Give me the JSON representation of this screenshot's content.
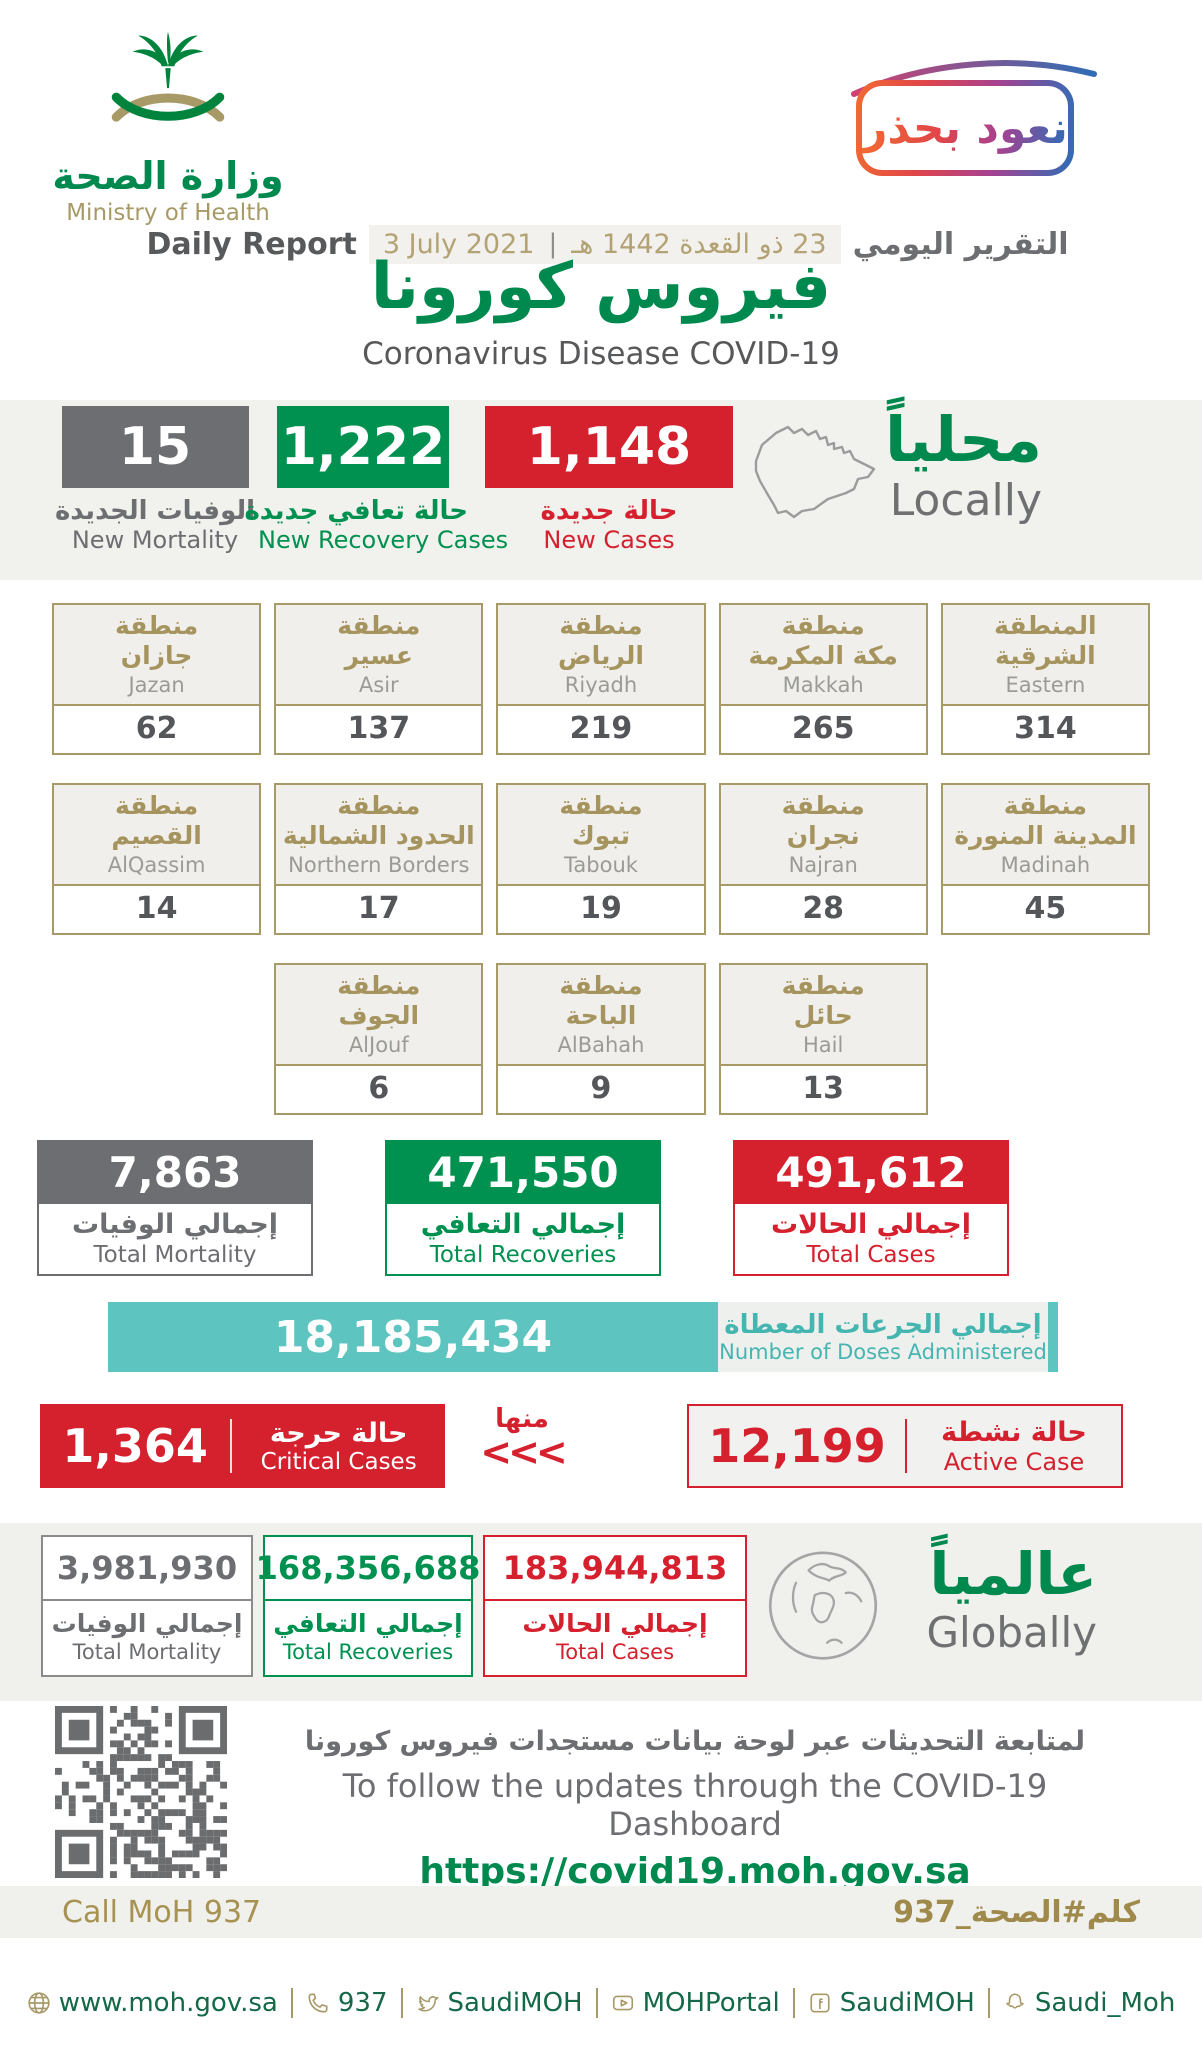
{
  "colors": {
    "green": "#009150",
    "red": "#d5202e",
    "gray": "#6d6e71",
    "gold": "#a79a66",
    "teal": "#5ec4c0"
  },
  "header": {
    "ministry_ar": "وزارة الصحة",
    "ministry_en": "Ministry of Health",
    "badge_ar": "نعود بحذر",
    "daily_report_en": "Daily Report",
    "date_gregorian": "3 July 2021",
    "date_separator": "|",
    "date_hijri": "23 ذو القعدة 1442 هـ",
    "report_label_ar": "التقرير اليومي",
    "title_ar": "فيروس كورونا",
    "subtitle_en": "Coronavirus Disease COVID-19"
  },
  "locally": {
    "heading_ar": "محلياً",
    "heading_en": "Locally",
    "new_mortality": {
      "value": "15",
      "label_ar": "الوفيات الجديدة",
      "label_en": "New Mortality"
    },
    "new_recoveries": {
      "value": "1,222",
      "label_ar": "حالة تعافي جديدة",
      "label_en": "New Recovery Cases"
    },
    "new_cases": {
      "value": "1,148",
      "label_ar": "حالة جديدة",
      "label_en": "New Cases"
    }
  },
  "regions": {
    "cards": [
      {
        "prefix_ar": "منطقة",
        "name_ar": "جازان",
        "name_en": "Jazan",
        "value": "62"
      },
      {
        "prefix_ar": "منطقة",
        "name_ar": "عسير",
        "name_en": "Asir",
        "value": "137"
      },
      {
        "prefix_ar": "منطقة",
        "name_ar": "الرياض",
        "name_en": "Riyadh",
        "value": "219"
      },
      {
        "prefix_ar": "منطقة",
        "name_ar": "مكة المكرمة",
        "name_en": "Makkah",
        "value": "265"
      },
      {
        "prefix_ar": "المنطقة",
        "name_ar": "الشرقية",
        "name_en": "Eastern",
        "value": "314"
      },
      {
        "prefix_ar": "منطقة",
        "name_ar": "القصيم",
        "name_en": "AlQassim",
        "value": "14"
      },
      {
        "prefix_ar": "منطقة",
        "name_ar": "الحدود الشمالية",
        "name_en": "Northern Borders",
        "value": "17"
      },
      {
        "prefix_ar": "منطقة",
        "name_ar": "تبوك",
        "name_en": "Tabouk",
        "value": "19"
      },
      {
        "prefix_ar": "منطقة",
        "name_ar": "نجران",
        "name_en": "Najran",
        "value": "28"
      },
      {
        "prefix_ar": "منطقة",
        "name_ar": "المدينة المنورة",
        "name_en": "Madinah",
        "value": "45"
      },
      {
        "prefix_ar": "منطقة",
        "name_ar": "الجوف",
        "name_en": "AlJouf",
        "value": "6"
      },
      {
        "prefix_ar": "منطقة",
        "name_ar": "الباحة",
        "name_en": "AlBahah",
        "value": "9"
      },
      {
        "prefix_ar": "منطقة",
        "name_ar": "حائل",
        "name_en": "Hail",
        "value": "13"
      }
    ]
  },
  "totals": [
    {
      "value": "7,863",
      "label_ar": "إجمالي الوفيات",
      "label_en": "Total Mortality"
    },
    {
      "value": "471,550",
      "label_ar": "إجمالي التعافي",
      "label_en": "Total Recoveries"
    },
    {
      "value": "491,612",
      "label_ar": "إجمالي الحالات",
      "label_en": "Total Cases"
    }
  ],
  "doses": {
    "value": "18,185,434",
    "label_ar": "إجمالي الجرعات المعطاة",
    "label_en": "Number of Doses Administered"
  },
  "critical": {
    "value": "1,364",
    "label_ar": "حالة حرجة",
    "label_en": "Critical Cases"
  },
  "of_which": {
    "label_ar": "منها",
    "chevrons": "<<<"
  },
  "active": {
    "value": "12,199",
    "label_ar": "حالة نشطة",
    "label_en": "Active Case"
  },
  "globally": {
    "heading_ar": "عالمياً",
    "heading_en": "Globally",
    "total_mortality": {
      "value": "3,981,930",
      "label_ar": "إجمالي الوفيات",
      "label_en": "Total Mortality"
    },
    "total_recoveries": {
      "value": "168,356,688",
      "label_ar": "إجمالي التعافي",
      "label_en": "Total Recoveries"
    },
    "total_cases": {
      "value": "183,944,813",
      "label_ar": "إجمالي الحالات",
      "label_en": "Total Cases"
    }
  },
  "dashboard": {
    "line_ar": "لمتابعة التحديثات عبر لوحة بيانات مستجدات فيروس كورونا",
    "line_en": "To follow the updates through the COVID-19 Dashboard",
    "url": "https://covid19.moh.gov.sa"
  },
  "hotline": {
    "call_en": "Call MoH 937",
    "hashtag_ar": "كلم#الصحة_937"
  },
  "footer": {
    "links": [
      {
        "icon": "globe",
        "label": "www.moh.gov.sa"
      },
      {
        "icon": "phone",
        "label": "937"
      },
      {
        "icon": "twitter",
        "label": "SaudiMOH"
      },
      {
        "icon": "youtube",
        "label": "MOHPortal"
      },
      {
        "icon": "facebook",
        "label": "SaudiMOH"
      },
      {
        "icon": "snapchat",
        "label": "Saudi_Moh"
      }
    ]
  }
}
